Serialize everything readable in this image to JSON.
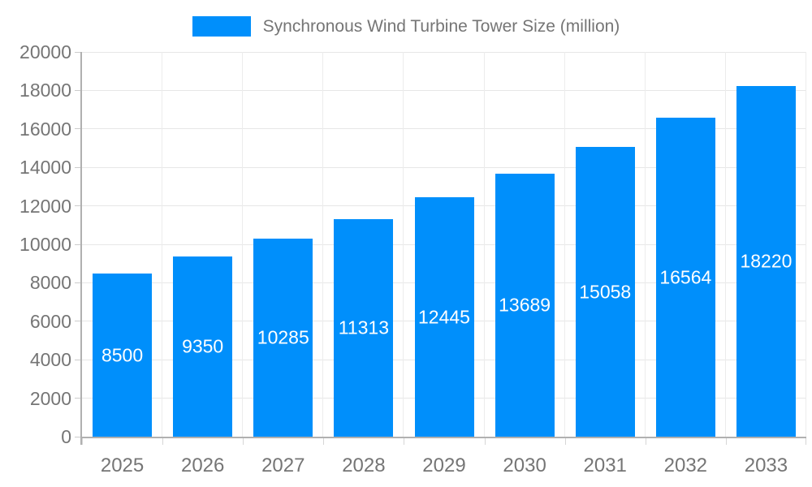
{
  "legend": {
    "label": "Synchronous Wind Turbine Tower Size (million)"
  },
  "chart_data": {
    "type": "bar",
    "title": "Synchronous Wind Turbine Tower Size (million)",
    "categories": [
      "2025",
      "2026",
      "2027",
      "2028",
      "2029",
      "2030",
      "2031",
      "2032",
      "2033"
    ],
    "values": [
      8500,
      9350,
      10285,
      11313,
      12445,
      13689,
      15058,
      16564,
      18220
    ],
    "xlabel": "",
    "ylabel": "",
    "ylim": [
      0,
      20000
    ],
    "ytick_step": 2000,
    "yticks": [
      0,
      2000,
      4000,
      6000,
      8000,
      10000,
      12000,
      14000,
      16000,
      18000,
      20000
    ],
    "grid": true,
    "legend_position": "top-center",
    "data_labels": "inside-center",
    "colors": {
      "bar": "#008FFB",
      "bar_label_text": "#FFFFFF",
      "axis_text": "#757575",
      "legend_text": "#757575",
      "grid_line_h": "#E7E7E7",
      "grid_line_v": "#ECECEC",
      "axis_line": "#B0B0B0",
      "background": "#FFFFFF"
    }
  }
}
